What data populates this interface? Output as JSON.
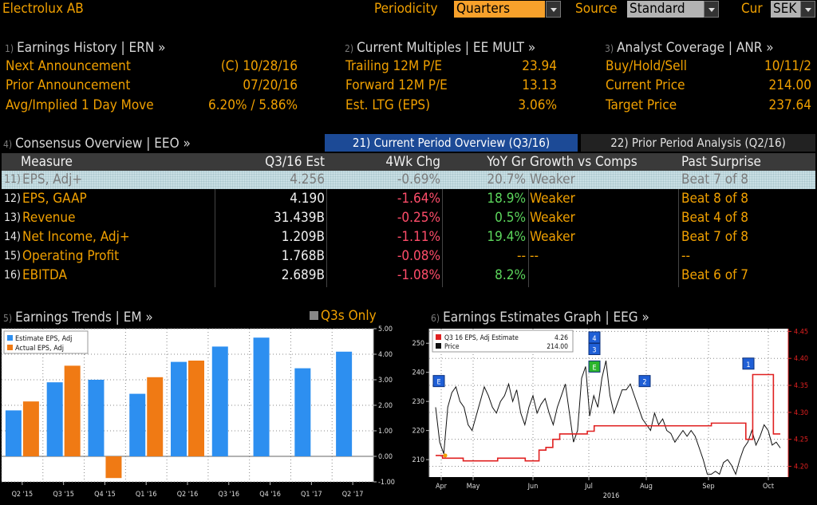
{
  "header": {
    "company": "Electrolux AB",
    "periodicity_label": "Periodicity",
    "periodicity_value": "Quarters",
    "source_label": "Source",
    "source_value": "Standard",
    "currency_label": "Cur",
    "currency_value": "SEK"
  },
  "earnings_history": {
    "num": "1)",
    "title": "Earnings History | ERN »",
    "rows": [
      {
        "label": "Next Announcement",
        "value": "(C)  10/28/16"
      },
      {
        "label": "Prior Announcement",
        "value": "07/20/16"
      },
      {
        "label": "Avg/Implied 1 Day Move",
        "value": "6.20% / 5.86%"
      }
    ]
  },
  "current_multiples": {
    "num": "2)",
    "title": "Current Multiples | EE MULT »",
    "rows": [
      {
        "label": "Trailing 12M P/E",
        "value": "23.94"
      },
      {
        "label": "Forward 12M P/E",
        "value": "13.13"
      },
      {
        "label": "Est. LTG (EPS)",
        "value": "3.06%"
      }
    ]
  },
  "analyst_coverage": {
    "num": "3)",
    "title": "Analyst Coverage | ANR »",
    "rows": [
      {
        "label": "Buy/Hold/Sell",
        "value": "10/11/2"
      },
      {
        "label": "Current Price",
        "value": "214.00"
      },
      {
        "label": "Target Price",
        "value": "237.64"
      }
    ]
  },
  "consensus": {
    "num": "4)",
    "title": "Consensus Overview | EEO »",
    "tab_current": "21) Current Period Overview (Q3/16)",
    "tab_prior": "22) Prior Period Analysis (Q2/16)",
    "columns": [
      "Measure",
      "Q3/16 Est",
      "4Wk Chg",
      "YoY Gr",
      "Growth vs Comps",
      "Past Surprise"
    ],
    "rows": [
      {
        "idx": "11)",
        "measure": "EPS, Adj+",
        "est": "4.256",
        "chg": "-0.69%",
        "yoy": "20.7%",
        "comps": "Weaker",
        "surprise": "Beat 7 of 8"
      },
      {
        "idx": "12)",
        "measure": "EPS, GAAP",
        "est": "4.190",
        "chg": "-1.64%",
        "yoy": "18.9%",
        "comps": "Weaker",
        "surprise": "Beat 8 of 8"
      },
      {
        "idx": "13)",
        "measure": "Revenue",
        "est": "31.439B",
        "chg": "-0.25%",
        "yoy": "0.5%",
        "comps": "Weaker",
        "surprise": "Beat 4 of 8"
      },
      {
        "idx": "14)",
        "measure": "Net Income, Adj+",
        "est": "1.209B",
        "chg": "-1.11%",
        "yoy": "19.4%",
        "comps": "Weaker",
        "surprise": "Beat 7 of 8"
      },
      {
        "idx": "15)",
        "measure": "Operating Profit",
        "est": "1.768B",
        "chg": "-0.08%",
        "yoy": "--",
        "comps": "--",
        "surprise": "--"
      },
      {
        "idx": "16)",
        "measure": "EBITDA",
        "est": "2.689B",
        "chg": "-1.08%",
        "yoy": "8.2%",
        "comps": "",
        "surprise": "Beat 6 of 7"
      }
    ]
  },
  "earnings_trends": {
    "num": "5)",
    "title": "Earnings Trends | EM »",
    "toggle_label": "Q3s Only"
  },
  "estimates_graph": {
    "num": "6)",
    "title": "Earnings Estimates Graph | EEG »"
  },
  "colors": {
    "accent": "#f0a000",
    "estimate_bar": "#2d8ff0",
    "actual_bar": "#f07a14",
    "negative": "#ff4d6a",
    "positive": "#5cd65c",
    "estimate_line": "#e02020"
  },
  "chart_data": [
    {
      "type": "bar",
      "categories": [
        "Q2 '15",
        "Q3 '15",
        "Q4 '15",
        "Q1 '16",
        "Q2 '16",
        "Q3 '16",
        "Q4 '16",
        "Q1 '17",
        "Q2 '17"
      ],
      "series": [
        {
          "name": "Estimate EPS, Adj",
          "values": [
            1.8,
            2.9,
            3.0,
            2.45,
            3.7,
            4.3,
            4.65,
            3.45,
            4.1
          ]
        },
        {
          "name": "Actual EPS, Adj",
          "values": [
            2.15,
            3.55,
            -0.85,
            3.1,
            3.75,
            null,
            null,
            null,
            null
          ]
        }
      ],
      "ylim": [
        -1.0,
        5.0
      ],
      "yticks": [
        "5.00",
        "4.00",
        "3.00",
        "2.00",
        "1.00",
        "0.00",
        "-1.00"
      ],
      "grid": true,
      "legend": "top-left"
    },
    {
      "type": "line",
      "legend_items": [
        {
          "name": "Q3 16 EPS, Adj Estimate",
          "value": "4.26"
        },
        {
          "name": "Price",
          "value": "214.00"
        }
      ],
      "x_ticks": [
        "Apr",
        "May",
        "Jun",
        "Jul",
        "Aug",
        "Sep",
        "Oct"
      ],
      "x_year": "2016",
      "left_axis": {
        "ticks": [
          "250",
          "240",
          "230",
          "220",
          "210"
        ],
        "ylim": [
          204,
          255
        ]
      },
      "right_axis": {
        "ticks": [
          "4.45",
          "4.40",
          "4.35",
          "4.30",
          "4.25",
          "4.20"
        ],
        "ylim": [
          4.18,
          4.455
        ]
      },
      "markers": [
        {
          "label": "E",
          "x": "Apr",
          "y": 237
        },
        {
          "label": "4",
          "x": "Jul",
          "y": 252
        },
        {
          "label": "3",
          "x": "Jul",
          "y": 248
        },
        {
          "label": "E",
          "x": "Jul",
          "y": 242
        },
        {
          "label": "2",
          "x": "Aug",
          "y": 237
        },
        {
          "label": "1",
          "x": "Oct",
          "y": 243
        }
      ],
      "price_series": [
        228,
        216,
        212,
        228,
        233,
        235,
        230,
        228,
        222,
        220,
        225,
        230,
        235,
        232,
        228,
        226,
        230,
        232,
        236,
        230,
        234,
        226,
        222,
        228,
        232,
        226,
        229,
        231,
        226,
        222,
        228,
        232,
        236,
        226,
        216,
        220,
        238,
        242,
        225,
        232,
        228,
        238,
        244,
        232,
        226,
        230,
        234,
        234,
        236,
        232,
        228,
        224,
        222,
        220,
        226,
        222,
        224,
        220,
        219,
        216,
        218,
        220,
        218,
        220,
        218,
        214,
        210,
        205,
        205,
        206,
        205,
        209,
        210,
        208,
        205,
        210,
        214,
        216,
        220,
        215,
        218,
        222,
        220,
        215,
        216,
        214
      ],
      "estimate_series": [
        4.22,
        4.215,
        4.215,
        4.215,
        4.21,
        4.21,
        4.21,
        4.21,
        4.21,
        4.215,
        4.215,
        4.215,
        4.215,
        4.21,
        4.21,
        4.23,
        4.235,
        4.25,
        4.26,
        4.26,
        4.26,
        4.26,
        4.265,
        4.275,
        4.275,
        4.275,
        4.275,
        4.275,
        4.275,
        4.275,
        4.275,
        4.275,
        4.275,
        4.275,
        4.275,
        4.275,
        4.275,
        4.275,
        4.275,
        4.275,
        4.28,
        4.28,
        4.28,
        4.28,
        4.28,
        4.25,
        4.37,
        4.37,
        4.37,
        4.26,
        4.26
      ]
    }
  ]
}
